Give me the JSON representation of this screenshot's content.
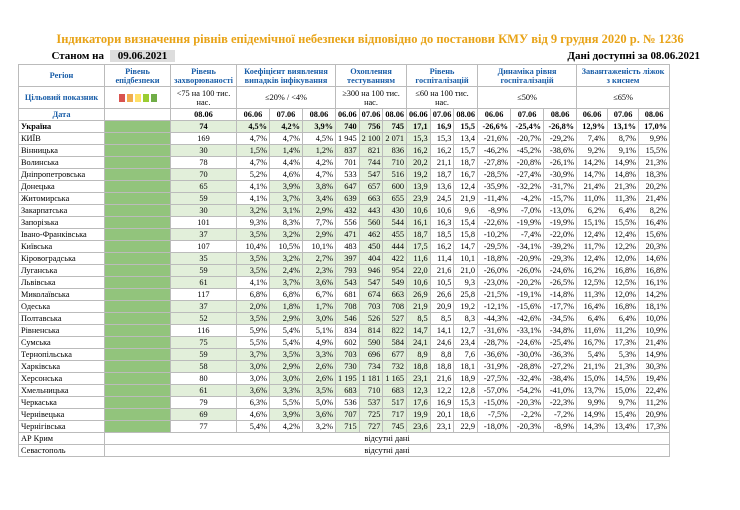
{
  "title": "Індикатори визначення рівнів епідемічної небезпеки відповідно до постанови КМУ від 9 грудня 2020 р. № 1236",
  "status_label": "Станом на",
  "status_date": "09.06.2021",
  "data_available": "Дані доступні за 08.06.2021",
  "headers": {
    "region": "Регіон",
    "level": "Рівень епідбезпеки",
    "morbidity": "Рівень захворюваності",
    "detection": "Коефіцієнт виявлення випадків інфікування",
    "testing": "Охоплення тестуванням",
    "hosp": "Рівень госпіталізацій",
    "dynamics": "Динаміка рівня госпіталізацій",
    "beds": "Завантаженість ліжок з киснем",
    "target": "Цільовий показник",
    "date": "Дата",
    "t_morb": "<75 на 100 тис. нас.",
    "t_det": "≤20% / <4%",
    "t_test": "≥300 на 100 тис. нас.",
    "t_hosp": "≤60 на 100 тис. нас.",
    "t_dyn": "≤50%",
    "t_beds": "≤65%",
    "d1": "08.06",
    "d2": "06.06",
    "d3": "07.06",
    "d4": "08.06"
  },
  "colors": {
    "title": "#e8a317",
    "header": "#1a5ea8",
    "green_level": "#92c47c",
    "scale": [
      "#d9534f",
      "#f0ad4e",
      "#ffe066",
      "#9acd32",
      "#70ad47"
    ]
  },
  "rows": [
    {
      "r": "Україна",
      "m": "74",
      "c1": "4,5%",
      "c2": "4,2%",
      "c3": "3,9%",
      "t1": "740",
      "t2": "756",
      "t3": "745",
      "h": "17,1",
      "h2": "16,9",
      "h3": "15,5",
      "dy1": "-26,6%",
      "dy2": "-25,4%",
      "dy3": "-26,8%",
      "b1": "12,9%",
      "b2": "13,1%",
      "b3": "17,0%",
      "g": [
        1,
        1,
        1,
        1,
        1,
        2,
        2,
        2,
        0,
        0,
        0,
        0,
        0,
        0,
        0,
        0,
        0
      ]
    },
    {
      "r": "КИЇВ",
      "m": "169",
      "c1": "4,7%",
      "c2": "4,7%",
      "c3": "4,5%",
      "t1": "1 945",
      "t2": "2 100",
      "t3": "2 071",
      "h": "15,3",
      "h2": "15,3",
      "h3": "13,4",
      "dy1": "-21,6%",
      "dy2": "-20,7%",
      "dy3": "-29,2%",
      "b1": "7,4%",
      "b2": "8,7%",
      "b3": "9,9%",
      "g": [
        0,
        0,
        0,
        0,
        0,
        2,
        2,
        2,
        0,
        0,
        0,
        0,
        0,
        0,
        0,
        0,
        0
      ]
    },
    {
      "r": "Вінницька",
      "m": "30",
      "c1": "1,5%",
      "c2": "1,4%",
      "c3": "1,2%",
      "t1": "837",
      "t2": "821",
      "t3": "836",
      "h": "16,2",
      "h2": "16,2",
      "h3": "15,7",
      "dy1": "-46,2%",
      "dy2": "-45,2%",
      "dy3": "-38,6%",
      "b1": "9,2%",
      "b2": "9,1%",
      "b3": "15,5%",
      "g": [
        1,
        1,
        1,
        1,
        1,
        1,
        1,
        1,
        0,
        0,
        0,
        0,
        0,
        0,
        0,
        0,
        0
      ]
    },
    {
      "r": "Волинська",
      "m": "78",
      "c1": "4,7%",
      "c2": "4,4%",
      "c3": "4,2%",
      "t1": "701",
      "t2": "744",
      "t3": "710",
      "h": "20,2",
      "h2": "21,1",
      "h3": "18,7",
      "dy1": "-27,8%",
      "dy2": "-20,8%",
      "dy3": "-26,1%",
      "b1": "14,2%",
      "b2": "14,9%",
      "b3": "21,3%",
      "g": [
        0,
        0,
        0,
        0,
        0,
        1,
        1,
        1,
        0,
        0,
        0,
        0,
        0,
        0,
        0,
        0,
        0
      ]
    },
    {
      "r": "Дніпропетровська",
      "m": "70",
      "c1": "5,2%",
      "c2": "4,6%",
      "c3": "4,7%",
      "t1": "533",
      "t2": "547",
      "t3": "516",
      "h": "19,2",
      "h2": "18,7",
      "h3": "16,7",
      "dy1": "-28,5%",
      "dy2": "-27,4%",
      "dy3": "-30,9%",
      "b1": "14,7%",
      "b2": "14,8%",
      "b3": "18,3%",
      "g": [
        1,
        0,
        0,
        0,
        0,
        1,
        1,
        1,
        0,
        0,
        0,
        0,
        0,
        0,
        0,
        0,
        0
      ]
    },
    {
      "r": "Донецька",
      "m": "65",
      "c1": "4,1%",
      "c2": "3,9%",
      "c3": "3,8%",
      "t1": "647",
      "t2": "657",
      "t3": "600",
      "h": "13,9",
      "h2": "13,6",
      "h3": "12,4",
      "dy1": "-35,9%",
      "dy2": "-32,2%",
      "dy3": "-31,7%",
      "b1": "21,4%",
      "b2": "21,3%",
      "b3": "20,2%",
      "g": [
        1,
        0,
        1,
        1,
        1,
        1,
        1,
        1,
        0,
        0,
        0,
        0,
        0,
        0,
        0,
        0,
        0
      ]
    },
    {
      "r": "Житомирська",
      "m": "59",
      "c1": "4,1%",
      "c2": "3,7%",
      "c3": "3,4%",
      "t1": "639",
      "t2": "663",
      "t3": "655",
      "h": "23,9",
      "h2": "24,5",
      "h3": "21,9",
      "dy1": "-11,4%",
      "dy2": "-4,2%",
      "dy3": "-15,7%",
      "b1": "11,0%",
      "b2": "11,3%",
      "b3": "21,4%",
      "g": [
        1,
        0,
        1,
        1,
        1,
        1,
        1,
        1,
        0,
        0,
        0,
        0,
        0,
        0,
        0,
        0,
        0
      ]
    },
    {
      "r": "Закарпатська",
      "m": "30",
      "c1": "3,2%",
      "c2": "3,1%",
      "c3": "2,9%",
      "t1": "432",
      "t2": "443",
      "t3": "430",
      "h": "10,6",
      "h2": "10,6",
      "h3": "9,6",
      "dy1": "-8,9%",
      "dy2": "-7,0%",
      "dy3": "-13,0%",
      "b1": "6,2%",
      "b2": "6,4%",
      "b3": "8,2%",
      "g": [
        1,
        1,
        1,
        1,
        1,
        1,
        1,
        1,
        0,
        0,
        0,
        0,
        0,
        0,
        0,
        0,
        0
      ]
    },
    {
      "r": "Запорізька",
      "m": "101",
      "c1": "9,3%",
      "c2": "8,3%",
      "c3": "7,7%",
      "t1": "556",
      "t2": "560",
      "t3": "544",
      "h": "16,1",
      "h2": "16,3",
      "h3": "15,4",
      "dy1": "-22,6%",
      "dy2": "-19,9%",
      "dy3": "-19,9%",
      "b1": "15,1%",
      "b2": "15,5%",
      "b3": "16,4%",
      "g": [
        0,
        0,
        0,
        0,
        0,
        1,
        1,
        1,
        0,
        0,
        0,
        0,
        0,
        0,
        0,
        0,
        0
      ]
    },
    {
      "r": "Івано-Франківська",
      "m": "37",
      "c1": "3,5%",
      "c2": "3,2%",
      "c3": "2,9%",
      "t1": "471",
      "t2": "462",
      "t3": "455",
      "h": "18,7",
      "h2": "18,5",
      "h3": "15,8",
      "dy1": "-10,2%",
      "dy2": "-7,4%",
      "dy3": "-22,0%",
      "b1": "12,4%",
      "b2": "12,4%",
      "b3": "15,6%",
      "g": [
        1,
        1,
        1,
        1,
        1,
        1,
        1,
        1,
        0,
        0,
        0,
        0,
        0,
        0,
        0,
        0,
        0
      ]
    },
    {
      "r": "Київська",
      "m": "107",
      "c1": "10,4%",
      "c2": "10,5%",
      "c3": "10,1%",
      "t1": "483",
      "t2": "450",
      "t3": "444",
      "h": "17,5",
      "h2": "16,2",
      "h3": "14,7",
      "dy1": "-29,5%",
      "dy2": "-34,1%",
      "dy3": "-39,2%",
      "b1": "11,7%",
      "b2": "12,2%",
      "b3": "20,3%",
      "g": [
        0,
        0,
        0,
        0,
        0,
        1,
        1,
        1,
        0,
        0,
        0,
        0,
        0,
        0,
        0,
        0,
        0
      ]
    },
    {
      "r": "Кіровоградська",
      "m": "35",
      "c1": "3,5%",
      "c2": "3,2%",
      "c3": "2,7%",
      "t1": "397",
      "t2": "404",
      "t3": "422",
      "h": "11,6",
      "h2": "11,4",
      "h3": "10,1",
      "dy1": "-18,8%",
      "dy2": "-20,9%",
      "dy3": "-29,3%",
      "b1": "12,4%",
      "b2": "12,0%",
      "b3": "14,6%",
      "g": [
        1,
        1,
        1,
        1,
        1,
        1,
        1,
        1,
        0,
        0,
        0,
        0,
        0,
        0,
        0,
        0,
        0
      ]
    },
    {
      "r": "Луганська",
      "m": "59",
      "c1": "3,5%",
      "c2": "2,4%",
      "c3": "2,3%",
      "t1": "793",
      "t2": "946",
      "t3": "954",
      "h": "22,0",
      "h2": "21,6",
      "h3": "21,0",
      "dy1": "-26,0%",
      "dy2": "-26,0%",
      "dy3": "-24,6%",
      "b1": "16,2%",
      "b2": "16,8%",
      "b3": "16,8%",
      "g": [
        1,
        1,
        1,
        1,
        1,
        1,
        1,
        1,
        0,
        0,
        0,
        0,
        0,
        0,
        0,
        0,
        0
      ]
    },
    {
      "r": "Львівська",
      "m": "61",
      "c1": "4,1%",
      "c2": "3,7%",
      "c3": "3,6%",
      "t1": "543",
      "t2": "547",
      "t3": "549",
      "h": "10,6",
      "h2": "10,5",
      "h3": "9,3",
      "dy1": "-23,0%",
      "dy2": "-20,2%",
      "dy3": "-26,5%",
      "b1": "12,5%",
      "b2": "12,5%",
      "b3": "16,1%",
      "g": [
        1,
        0,
        1,
        1,
        1,
        1,
        1,
        1,
        0,
        0,
        0,
        0,
        0,
        0,
        0,
        0,
        0
      ]
    },
    {
      "r": "Миколаївська",
      "m": "117",
      "c1": "6,8%",
      "c2": "6,8%",
      "c3": "6,7%",
      "t1": "681",
      "t2": "674",
      "t3": "663",
      "h": "26,9",
      "h2": "26,6",
      "h3": "25,8",
      "dy1": "-21,5%",
      "dy2": "-19,1%",
      "dy3": "-14,8%",
      "b1": "11,3%",
      "b2": "12,0%",
      "b3": "14,2%",
      "g": [
        0,
        0,
        0,
        0,
        0,
        1,
        1,
        1,
        0,
        0,
        0,
        0,
        0,
        0,
        0,
        0,
        0
      ]
    },
    {
      "r": "Одеська",
      "m": "37",
      "c1": "2,0%",
      "c2": "1,8%",
      "c3": "1,7%",
      "t1": "708",
      "t2": "703",
      "t3": "708",
      "h": "21,9",
      "h2": "20,9",
      "h3": "19,2",
      "dy1": "-12,1%",
      "dy2": "-15,6%",
      "dy3": "-17,7%",
      "b1": "16,4%",
      "b2": "16,8%",
      "b3": "18,1%",
      "g": [
        1,
        1,
        1,
        1,
        1,
        1,
        1,
        1,
        0,
        0,
        0,
        0,
        0,
        0,
        0,
        0,
        0
      ]
    },
    {
      "r": "Полтавська",
      "m": "52",
      "c1": "3,5%",
      "c2": "2,9%",
      "c3": "3,0%",
      "t1": "546",
      "t2": "526",
      "t3": "527",
      "h": "8,5",
      "h2": "8,5",
      "h3": "8,3",
      "dy1": "-44,3%",
      "dy2": "-42,6%",
      "dy3": "-34,5%",
      "b1": "6,4%",
      "b2": "6,4%",
      "b3": "10,0%",
      "g": [
        1,
        1,
        1,
        1,
        1,
        1,
        1,
        1,
        0,
        0,
        0,
        0,
        0,
        0,
        0,
        0,
        0
      ]
    },
    {
      "r": "Рівненська",
      "m": "116",
      "c1": "5,9%",
      "c2": "5,4%",
      "c3": "5,1%",
      "t1": "834",
      "t2": "814",
      "t3": "822",
      "h": "14,7",
      "h2": "14,1",
      "h3": "12,7",
      "dy1": "-31,6%",
      "dy2": "-33,1%",
      "dy3": "-34,8%",
      "b1": "11,6%",
      "b2": "11,2%",
      "b3": "10,9%",
      "g": [
        0,
        0,
        0,
        0,
        0,
        1,
        1,
        1,
        0,
        0,
        0,
        0,
        0,
        0,
        0,
        0,
        0
      ]
    },
    {
      "r": "Сумська",
      "m": "75",
      "c1": "5,5%",
      "c2": "5,4%",
      "c3": "4,9%",
      "t1": "602",
      "t2": "590",
      "t3": "584",
      "h": "24,1",
      "h2": "24,6",
      "h3": "23,4",
      "dy1": "-28,7%",
      "dy2": "-24,6%",
      "dy3": "-25,4%",
      "b1": "16,7%",
      "b2": "17,3%",
      "b3": "21,4%",
      "g": [
        1,
        0,
        0,
        0,
        0,
        1,
        1,
        1,
        0,
        0,
        0,
        0,
        0,
        0,
        0,
        0,
        0
      ]
    },
    {
      "r": "Тернопільська",
      "m": "59",
      "c1": "3,7%",
      "c2": "3,5%",
      "c3": "3,3%",
      "t1": "703",
      "t2": "696",
      "t3": "677",
      "h": "8,9",
      "h2": "8,8",
      "h3": "7,6",
      "dy1": "-36,6%",
      "dy2": "-30,0%",
      "dy3": "-36,3%",
      "b1": "5,4%",
      "b2": "5,3%",
      "b3": "14,9%",
      "g": [
        1,
        1,
        1,
        1,
        1,
        1,
        1,
        1,
        0,
        0,
        0,
        0,
        0,
        0,
        0,
        0,
        0
      ]
    },
    {
      "r": "Харківська",
      "m": "58",
      "c1": "3,0%",
      "c2": "2,9%",
      "c3": "2,6%",
      "t1": "730",
      "t2": "734",
      "t3": "732",
      "h": "18,8",
      "h2": "18,8",
      "h3": "18,1",
      "dy1": "-31,9%",
      "dy2": "-28,8%",
      "dy3": "-27,2%",
      "b1": "21,1%",
      "b2": "21,3%",
      "b3": "30,3%",
      "g": [
        1,
        1,
        1,
        1,
        1,
        1,
        1,
        1,
        0,
        0,
        0,
        0,
        0,
        0,
        0,
        0,
        0
      ]
    },
    {
      "r": "Херсонська",
      "m": "80",
      "c1": "3,0%",
      "c2": "3,0%",
      "c3": "2,6%",
      "t1": "1 195",
      "t2": "1 181",
      "t3": "1 165",
      "h": "23,1",
      "h2": "21,6",
      "h3": "18,9",
      "dy1": "-27,5%",
      "dy2": "-32,4%",
      "dy3": "-38,4%",
      "b1": "15,0%",
      "b2": "14,5%",
      "b3": "19,4%",
      "g": [
        0,
        0,
        1,
        1,
        1,
        1,
        1,
        1,
        0,
        0,
        0,
        0,
        0,
        0,
        0,
        0,
        0
      ]
    },
    {
      "r": "Хмельницька",
      "m": "61",
      "c1": "3,6%",
      "c2": "3,3%",
      "c3": "3,5%",
      "t1": "683",
      "t2": "710",
      "t3": "683",
      "h": "12,3",
      "h2": "12,2",
      "h3": "12,8",
      "dy1": "-57,0%",
      "dy2": "-54,2%",
      "dy3": "-41,0%",
      "b1": "13,7%",
      "b2": "15,0%",
      "b3": "22,4%",
      "g": [
        1,
        1,
        1,
        1,
        1,
        1,
        1,
        1,
        0,
        0,
        0,
        0,
        0,
        0,
        0,
        0,
        0
      ]
    },
    {
      "r": "Черкаська",
      "m": "79",
      "c1": "6,3%",
      "c2": "5,5%",
      "c3": "5,0%",
      "t1": "536",
      "t2": "537",
      "t3": "517",
      "h": "17,6",
      "h2": "16,9",
      "h3": "15,3",
      "dy1": "-15,0%",
      "dy2": "-20,3%",
      "dy3": "-22,3%",
      "b1": "9,9%",
      "b2": "9,7%",
      "b3": "11,2%",
      "g": [
        0,
        0,
        0,
        0,
        0,
        1,
        1,
        1,
        0,
        0,
        0,
        0,
        0,
        0,
        0,
        0,
        0
      ]
    },
    {
      "r": "Чернівецька",
      "m": "69",
      "c1": "4,6%",
      "c2": "3,9%",
      "c3": "3,6%",
      "t1": "707",
      "t2": "725",
      "t3": "717",
      "h": "19,9",
      "h2": "20,1",
      "h3": "18,6",
      "dy1": "-7,5%",
      "dy2": "-2,2%",
      "dy3": "-7,2%",
      "b1": "14,9%",
      "b2": "15,4%",
      "b3": "20,9%",
      "g": [
        1,
        0,
        1,
        1,
        1,
        1,
        1,
        1,
        0,
        0,
        0,
        0,
        0,
        0,
        0,
        0,
        0
      ]
    },
    {
      "r": "Чернігівська",
      "m": "77",
      "c1": "5,4%",
      "c2": "4,2%",
      "c3": "3,2%",
      "t1": "715",
      "t2": "727",
      "t3": "745",
      "h": "23,6",
      "h2": "23,1",
      "h3": "22,9",
      "dy1": "-18,0%",
      "dy2": "-20,3%",
      "dy3": "-8,9%",
      "b1": "14,3%",
      "b2": "13,4%",
      "b3": "17,3%",
      "g": [
        0,
        0,
        0,
        0,
        1,
        1,
        1,
        1,
        0,
        0,
        0,
        0,
        0,
        0,
        0,
        0,
        0
      ]
    }
  ],
  "missing": [
    {
      "r": "АР Крим",
      "note": "відсутні дані"
    },
    {
      "r": "Севастополь",
      "note": "відсутні дані"
    }
  ]
}
